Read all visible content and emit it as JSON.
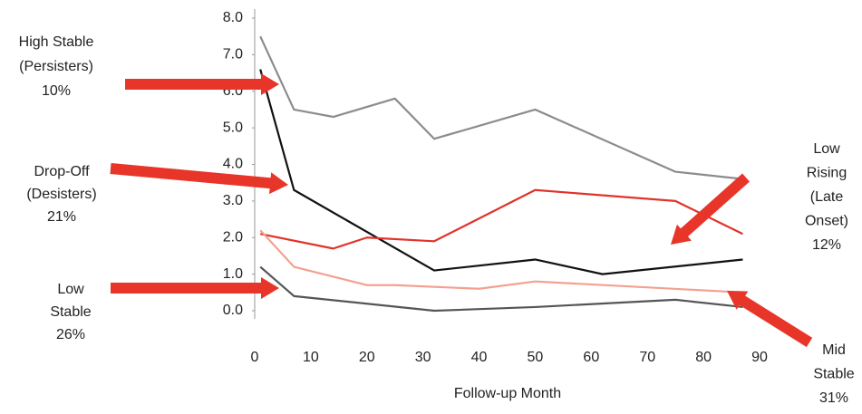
{
  "chart_data": {
    "type": "line",
    "x_label": "Follow-up Month",
    "xlim": [
      0,
      90
    ],
    "xticks": [
      0,
      10,
      20,
      30,
      40,
      50,
      60,
      70,
      80,
      90
    ],
    "ylim": [
      0,
      8
    ],
    "yticks": [
      {
        "value": 0,
        "label": "0.0"
      },
      {
        "value": 1,
        "label": "1.0"
      },
      {
        "value": 2,
        "label": "2.0"
      },
      {
        "value": 3,
        "label": "3.0"
      },
      {
        "value": 4,
        "label": "4.0"
      },
      {
        "value": 5,
        "label": "5.0"
      },
      {
        "value": 6,
        "label": "6.0"
      },
      {
        "value": 7,
        "label": "7.0"
      },
      {
        "value": 8,
        "label": "8.0"
      }
    ],
    "grid": false,
    "series": [
      {
        "color": "#8c8c8c",
        "x": [
          1,
          7,
          14,
          25,
          32,
          50,
          75,
          87
        ],
        "values": [
          7.5,
          5.5,
          5.3,
          5.8,
          4.7,
          5.5,
          3.8,
          3.6
        ]
      },
      {
        "color": "#111111",
        "x": [
          1,
          7,
          32,
          50,
          62,
          87
        ],
        "values": [
          6.6,
          3.3,
          1.1,
          1.4,
          1.0,
          1.4
        ]
      },
      {
        "color": "#e0342a",
        "x": [
          1,
          14,
          20,
          32,
          50,
          75,
          87
        ],
        "values": [
          2.1,
          1.7,
          2.0,
          1.9,
          3.3,
          3.0,
          2.1
        ]
      },
      {
        "color": "#f4a090",
        "x": [
          1,
          7,
          20,
          25,
          40,
          50,
          87
        ],
        "values": [
          2.2,
          1.2,
          0.7,
          0.7,
          0.6,
          0.8,
          0.5
        ]
      },
      {
        "color": "#555555",
        "x": [
          1,
          7,
          32,
          50,
          75,
          87
        ],
        "values": [
          1.2,
          0.4,
          0.0,
          0.1,
          0.3,
          0.1
        ]
      }
    ],
    "annotations": [
      {
        "lines": [
          "High Stable",
          "(Persisters)",
          "10%"
        ]
      },
      {
        "lines": [
          "Drop-Off",
          "(Desisters)",
          "21%"
        ]
      },
      {
        "lines": [
          "Low",
          "Stable",
          "26%"
        ]
      },
      {
        "lines": [
          "Low",
          "Rising",
          "(Late",
          "Onset)",
          "12%"
        ]
      },
      {
        "lines": [
          "Mid",
          "Stable",
          "31%"
        ]
      }
    ]
  }
}
